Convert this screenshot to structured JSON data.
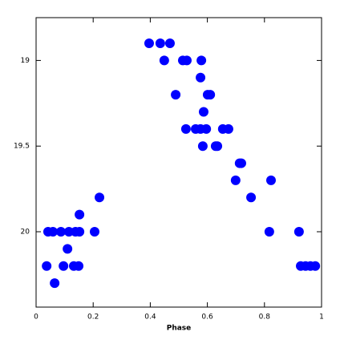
{
  "chart_data": {
    "type": "scatter",
    "xlabel": "Phase",
    "series": [
      {
        "color": "#0000ff",
        "x": [
          0.396,
          0.435,
          0.469,
          0.449,
          0.514,
          0.528,
          0.579,
          0.576,
          0.489,
          0.601,
          0.61,
          0.587,
          0.525,
          0.559,
          0.576,
          0.596,
          0.654,
          0.674,
          0.584,
          0.629,
          0.635,
          0.713,
          0.719,
          0.699,
          0.823,
          0.222,
          0.753,
          0.152,
          0.042,
          0.059,
          0.087,
          0.115,
          0.138,
          0.152,
          0.205,
          0.817,
          0.921,
          0.11,
          0.037,
          0.096,
          0.132,
          0.149,
          0.927,
          0.944,
          0.961,
          0.978,
          0.065
        ],
        "values": [
          18.9,
          18.9,
          18.9,
          19.0,
          19.0,
          19.0,
          19.0,
          19.1,
          19.2,
          19.2,
          19.2,
          19.3,
          19.4,
          19.4,
          19.4,
          19.4,
          19.4,
          19.4,
          19.5,
          19.5,
          19.5,
          19.6,
          19.6,
          19.7,
          19.7,
          19.8,
          19.8,
          19.9,
          20.0,
          20.0,
          20.0,
          20.0,
          20.0,
          20.0,
          20.0,
          20.0,
          20.0,
          20.1,
          20.2,
          20.2,
          20.2,
          20.2,
          20.2,
          20.2,
          20.2,
          20.2,
          20.3
        ]
      }
    ],
    "xlim": [
      0,
      1
    ],
    "xticks": [
      0,
      0.2,
      0.4,
      0.6,
      0.8,
      1
    ],
    "ylim": [
      20.44,
      18.75
    ],
    "yticks": [
      19,
      19.5,
      20
    ]
  }
}
